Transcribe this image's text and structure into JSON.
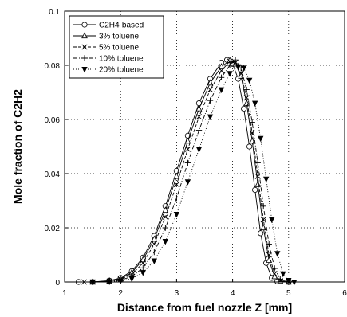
{
  "chart_data": {
    "type": "line",
    "xlabel": "Distance from fuel nozzle  Z [mm]",
    "ylabel": "Mole fraction of C2H2",
    "xlim": [
      1,
      6
    ],
    "ylim": [
      0,
      0.1
    ],
    "x_ticks": [
      "1",
      "2",
      "3",
      "4",
      "5",
      "6"
    ],
    "y_ticks": [
      "0",
      "0.02",
      "0.04",
      "0.06",
      "0.08",
      "0.1"
    ],
    "grid": true,
    "grid_style": "dotted",
    "legend_position": "top-left",
    "series": [
      {
        "name": "C2H4-based",
        "marker": "circle-open",
        "dash": "solid",
        "points": [
          [
            1.25,
            0
          ],
          [
            1.5,
            0
          ],
          [
            1.8,
            0.0005
          ],
          [
            2.0,
            0.0015
          ],
          [
            2.2,
            0.004
          ],
          [
            2.4,
            0.009
          ],
          [
            2.6,
            0.017
          ],
          [
            2.8,
            0.028
          ],
          [
            3.0,
            0.041
          ],
          [
            3.2,
            0.054
          ],
          [
            3.4,
            0.066
          ],
          [
            3.6,
            0.075
          ],
          [
            3.8,
            0.081
          ],
          [
            3.9,
            0.082
          ],
          [
            4.0,
            0.0805
          ],
          [
            4.1,
            0.075
          ],
          [
            4.2,
            0.064
          ],
          [
            4.3,
            0.05
          ],
          [
            4.4,
            0.034
          ],
          [
            4.5,
            0.018
          ],
          [
            4.6,
            0.007
          ],
          [
            4.7,
            0.0015
          ],
          [
            4.8,
            0.0002
          ],
          [
            5.0,
            0
          ],
          [
            6.0,
            0
          ]
        ]
      },
      {
        "name": "3% toluene",
        "marker": "triangle-open",
        "dash": "solid",
        "points": [
          [
            1.5,
            0
          ],
          [
            1.8,
            0.0004
          ],
          [
            2.0,
            0.0012
          ],
          [
            2.2,
            0.0035
          ],
          [
            2.4,
            0.0082
          ],
          [
            2.6,
            0.0158
          ],
          [
            2.8,
            0.0265
          ],
          [
            3.0,
            0.039
          ],
          [
            3.2,
            0.052
          ],
          [
            3.4,
            0.064
          ],
          [
            3.6,
            0.0735
          ],
          [
            3.8,
            0.0795
          ],
          [
            3.95,
            0.0818
          ],
          [
            4.05,
            0.0805
          ],
          [
            4.15,
            0.076
          ],
          [
            4.25,
            0.066
          ],
          [
            4.35,
            0.052
          ],
          [
            4.45,
            0.036
          ],
          [
            4.55,
            0.02
          ],
          [
            4.65,
            0.008
          ],
          [
            4.75,
            0.002
          ],
          [
            4.85,
            0.0003
          ],
          [
            5.0,
            0
          ],
          [
            6.0,
            0
          ]
        ]
      },
      {
        "name": "5% toluene",
        "marker": "cross",
        "dash": "dashed",
        "points": [
          [
            1.35,
            0
          ],
          [
            1.5,
            0
          ],
          [
            1.8,
            0.0003
          ],
          [
            2.0,
            0.001
          ],
          [
            2.2,
            0.0028
          ],
          [
            2.4,
            0.007
          ],
          [
            2.6,
            0.014
          ],
          [
            2.8,
            0.024
          ],
          [
            3.0,
            0.036
          ],
          [
            3.2,
            0.049
          ],
          [
            3.4,
            0.061
          ],
          [
            3.6,
            0.071
          ],
          [
            3.8,
            0.078
          ],
          [
            3.95,
            0.0815
          ],
          [
            4.05,
            0.081
          ],
          [
            4.15,
            0.077
          ],
          [
            4.25,
            0.068
          ],
          [
            4.35,
            0.055
          ],
          [
            4.45,
            0.039
          ],
          [
            4.55,
            0.023
          ],
          [
            4.65,
            0.01
          ],
          [
            4.75,
            0.003
          ],
          [
            4.85,
            0.0005
          ],
          [
            5.0,
            0
          ],
          [
            6.0,
            0
          ]
        ]
      },
      {
        "name": "10% toluene",
        "marker": "plus",
        "dash": "dash-dot",
        "points": [
          [
            1.5,
            0
          ],
          [
            1.8,
            0.0002
          ],
          [
            2.0,
            0.0007
          ],
          [
            2.2,
            0.002
          ],
          [
            2.4,
            0.0052
          ],
          [
            2.6,
            0.011
          ],
          [
            2.8,
            0.02
          ],
          [
            3.0,
            0.031
          ],
          [
            3.2,
            0.044
          ],
          [
            3.4,
            0.056
          ],
          [
            3.6,
            0.067
          ],
          [
            3.8,
            0.0755
          ],
          [
            3.95,
            0.08
          ],
          [
            4.05,
            0.082
          ],
          [
            4.15,
            0.079
          ],
          [
            4.25,
            0.071
          ],
          [
            4.35,
            0.059
          ],
          [
            4.45,
            0.044
          ],
          [
            4.55,
            0.028
          ],
          [
            4.65,
            0.014
          ],
          [
            4.75,
            0.005
          ],
          [
            4.85,
            0.001
          ],
          [
            5.0,
            0
          ],
          [
            6.0,
            0
          ]
        ]
      },
      {
        "name": "20% toluene",
        "marker": "triangle-down-filled",
        "dash": "dotted",
        "points": [
          [
            1.5,
            0
          ],
          [
            1.8,
            0.0001
          ],
          [
            2.0,
            0.0004
          ],
          [
            2.2,
            0.0012
          ],
          [
            2.4,
            0.0035
          ],
          [
            2.6,
            0.0078
          ],
          [
            2.8,
            0.015
          ],
          [
            3.0,
            0.025
          ],
          [
            3.2,
            0.037
          ],
          [
            3.4,
            0.049
          ],
          [
            3.6,
            0.061
          ],
          [
            3.8,
            0.071
          ],
          [
            3.95,
            0.077
          ],
          [
            4.1,
            0.0795
          ],
          [
            4.2,
            0.079
          ],
          [
            4.3,
            0.0745
          ],
          [
            4.4,
            0.066
          ],
          [
            4.5,
            0.053
          ],
          [
            4.6,
            0.038
          ],
          [
            4.7,
            0.023
          ],
          [
            4.8,
            0.0105
          ],
          [
            4.9,
            0.003
          ],
          [
            5.0,
            0.0006
          ],
          [
            5.1,
            0
          ],
          [
            6.0,
            0
          ]
        ]
      }
    ]
  }
}
